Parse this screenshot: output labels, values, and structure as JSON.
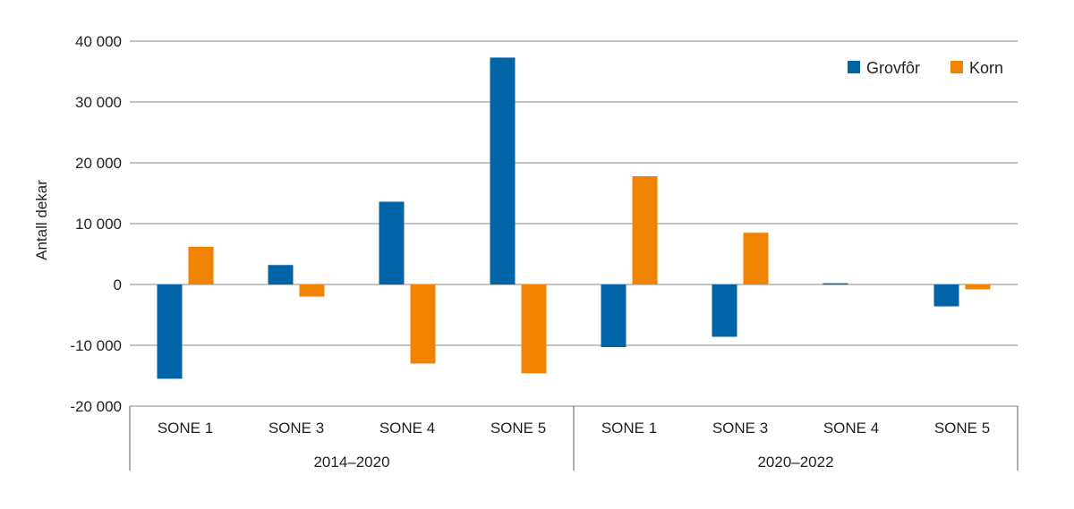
{
  "chart_data": {
    "type": "bar",
    "ylabel": "Antall dekar",
    "ylim": [
      -20000,
      40000
    ],
    "yticks": [
      40000,
      30000,
      20000,
      10000,
      0,
      -10000,
      -20000
    ],
    "ytick_labels": [
      "40 000",
      "30 000",
      "20 000",
      "10 000",
      "0",
      "-10 000",
      "-20 000"
    ],
    "grid": true,
    "legend_position": "top-right",
    "groups": [
      {
        "label": "2014–2020",
        "categories": [
          "SONE 1",
          "SONE 3",
          "SONE 4",
          "SONE 5"
        ]
      },
      {
        "label": "2020–2022",
        "categories": [
          "SONE 1",
          "SONE 3",
          "SONE 4",
          "SONE 5"
        ]
      }
    ],
    "series": [
      {
        "name": "Grovfôr",
        "color": "#0064a6",
        "values": [
          -15500,
          3200,
          13600,
          37300,
          -10300,
          -8600,
          200,
          -3600
        ]
      },
      {
        "name": "Korn",
        "color": "#f08300",
        "values": [
          6200,
          -2000,
          -13000,
          -14600,
          17800,
          8500,
          0,
          -800
        ]
      }
    ]
  }
}
